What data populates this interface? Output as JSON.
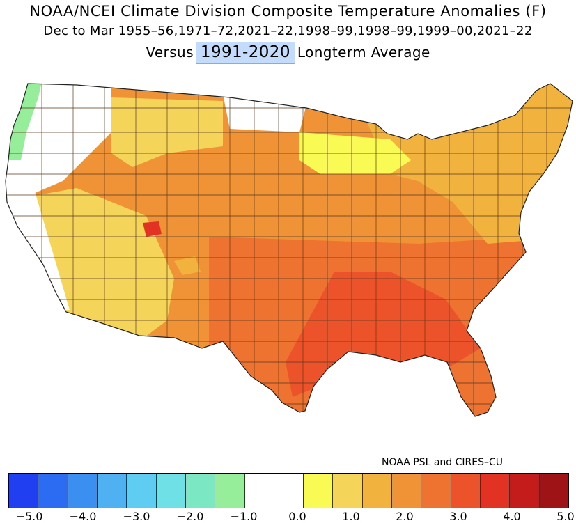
{
  "title": {
    "line1": "NOAA/NCEI Climate Division Composite Temperature Anomalies (F)",
    "line2": "Dec to Mar  1955–56,1971–72,2021–22,1998–99,1998–99,1999–00,2021–22",
    "line3_prefix": "Versus",
    "line3_highlight": "1991-2020",
    "line3_suffix": "Longterm Average"
  },
  "credit": "NOAA PSL and CIRES–CU",
  "colorbar": {
    "colors": [
      "#1f3ff0",
      "#2c6cf2",
      "#3b8ff0",
      "#4fb0f2",
      "#5fcdf2",
      "#6fe0e6",
      "#7ce8c3",
      "#96ee9a",
      "#ffffff",
      "#ffffff",
      "#fafa55",
      "#f5d45a",
      "#f1b33e",
      "#ef9336",
      "#ee7230",
      "#ec532a",
      "#e23224",
      "#c41b1b",
      "#9e1316"
    ],
    "tick_labels": [
      "−5.0",
      "−4.0",
      "−3.0",
      "−2.0",
      "−1.0",
      "0.0",
      "1.0",
      "2.0",
      "3.0",
      "4.0",
      "5.0"
    ]
  },
  "map": {
    "regions": [
      {
        "name": "washington-coast",
        "color": "#96ee9a"
      },
      {
        "name": "pacific-northwest-interior",
        "color": "#ffffff"
      },
      {
        "name": "california-coast",
        "color": "#ffffff"
      },
      {
        "name": "southwest-inland",
        "color": "#f5d45a"
      },
      {
        "name": "northern-rockies",
        "color": "#f5d45a"
      },
      {
        "name": "northern-plains",
        "color": "#ffffff"
      },
      {
        "name": "upper-midwest",
        "color": "#fafa55"
      },
      {
        "name": "central-plains",
        "color": "#ef9336"
      },
      {
        "name": "southern-plains",
        "color": "#ee7230"
      },
      {
        "name": "southeast",
        "color": "#ee7230"
      },
      {
        "name": "gulf-coast",
        "color": "#ec532a"
      },
      {
        "name": "northeast",
        "color": "#f1b33e"
      },
      {
        "name": "utah-hotspot",
        "color": "#e23224"
      }
    ]
  }
}
